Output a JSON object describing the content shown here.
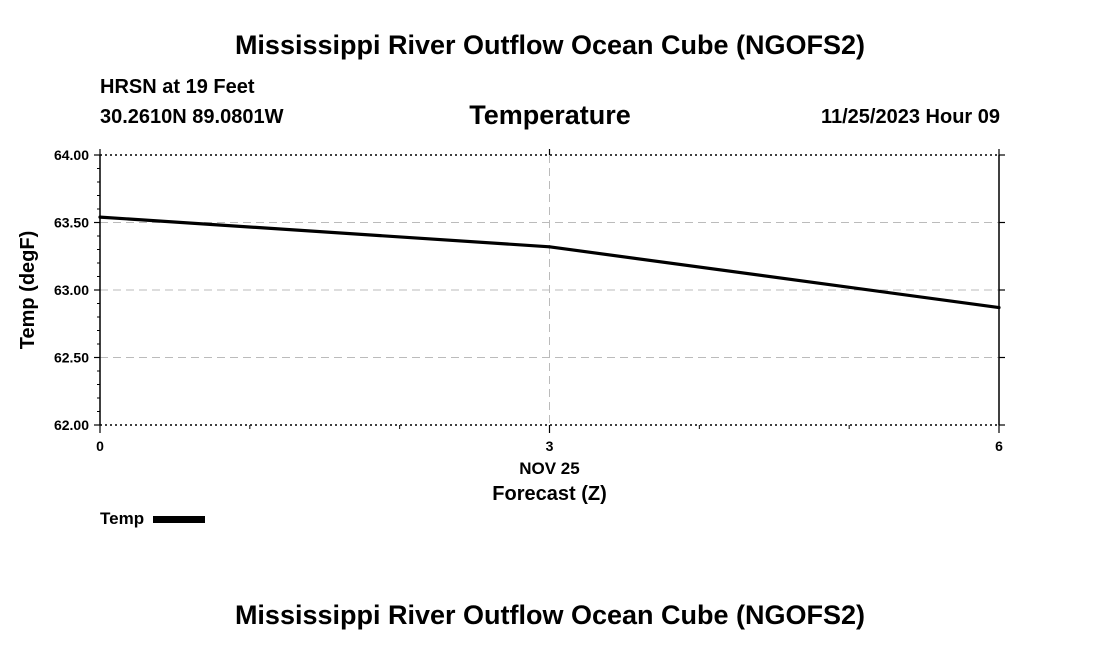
{
  "header": {
    "title": "Mississippi River Outflow Ocean Cube (NGOFS2)",
    "station": "HRSN at 19 Feet",
    "coords": "30.2610N  89.0801W",
    "variable": "Temperature",
    "timestamp": "11/25/2023 Hour 09"
  },
  "footer": {
    "title": "Mississippi River Outflow Ocean Cube (NGOFS2)"
  },
  "chart_data": {
    "type": "line",
    "title": "Temperature",
    "xlabel": "Forecast (Z)",
    "ylabel": "Temp (degF)",
    "xlim": [
      0,
      6
    ],
    "ylim": [
      62.0,
      64.0
    ],
    "xticks": [
      0,
      3,
      6
    ],
    "xtick_labels": [
      "0",
      "3",
      "6"
    ],
    "xdate_label": "NOV 25",
    "xdate_at": 3,
    "yticks": [
      62.0,
      62.5,
      63.0,
      63.5,
      64.0
    ],
    "ytick_labels": [
      "62.00",
      "62.50",
      "63.00",
      "63.50",
      "64.00"
    ],
    "grid": true,
    "legend_position": "bottom-left",
    "series": [
      {
        "name": "Temp",
        "color": "#000000",
        "x": [
          0,
          3,
          6
        ],
        "values": [
          63.54,
          63.32,
          62.87
        ]
      }
    ]
  }
}
